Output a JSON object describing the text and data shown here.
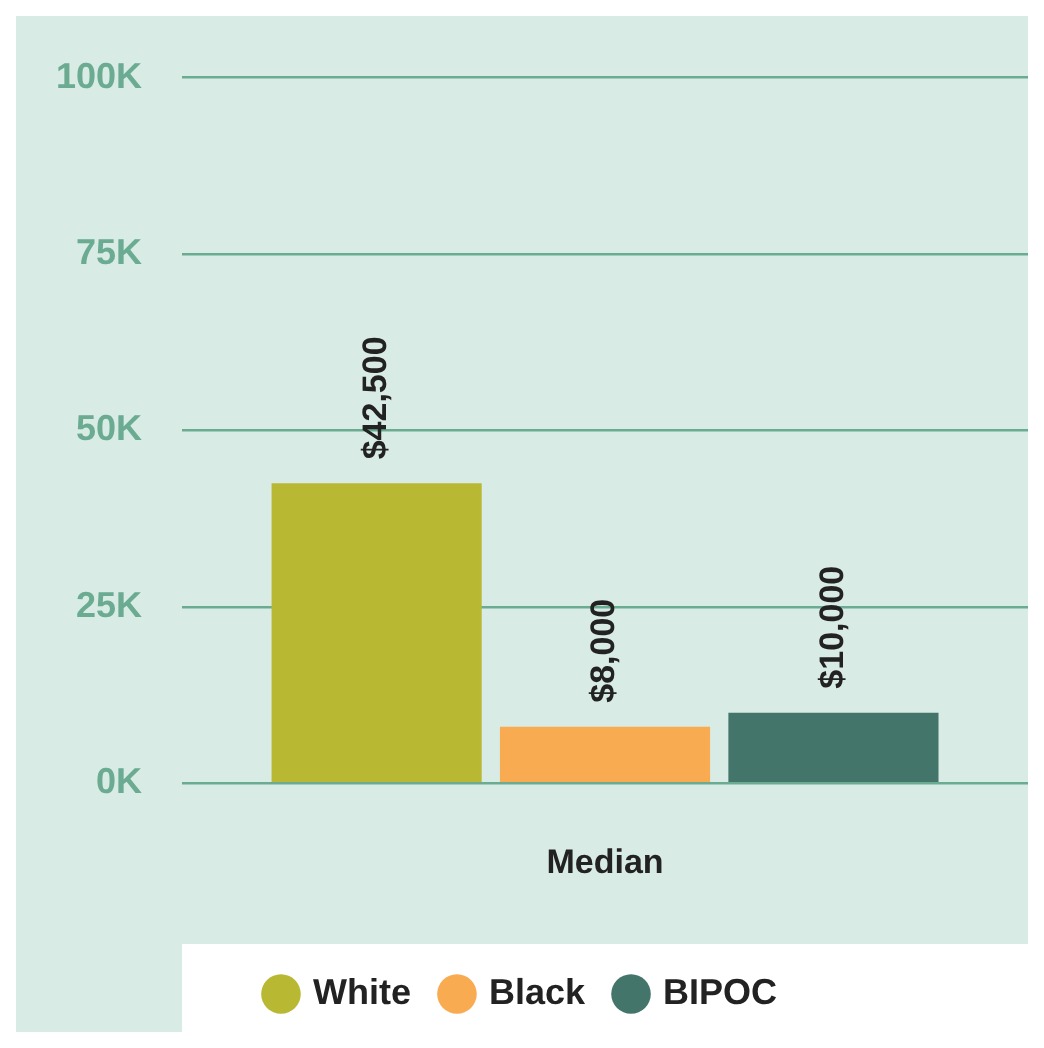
{
  "chart_data": {
    "type": "bar",
    "categories": [
      "Median"
    ],
    "series": [
      {
        "name": "White",
        "color": "#b8b833",
        "values": [
          42500
        ],
        "value_labels": [
          "$42,500"
        ]
      },
      {
        "name": "Black",
        "color": "#f8ab50",
        "values": [
          8000
        ],
        "value_labels": [
          "$8,000"
        ]
      },
      {
        "name": "BIPOC",
        "color": "#44756a",
        "values": [
          10000
        ],
        "value_labels": [
          "$10,000"
        ]
      }
    ],
    "ylim": [
      0,
      100000
    ],
    "yticks": [
      {
        "value": 0,
        "label": "0K"
      },
      {
        "value": 25000,
        "label": "25K"
      },
      {
        "value": 50000,
        "label": "50K"
      },
      {
        "value": 75000,
        "label": "75K"
      },
      {
        "value": 100000,
        "label": "100K"
      }
    ],
    "grid": "y",
    "legend": "bottom",
    "marker": "circle"
  }
}
